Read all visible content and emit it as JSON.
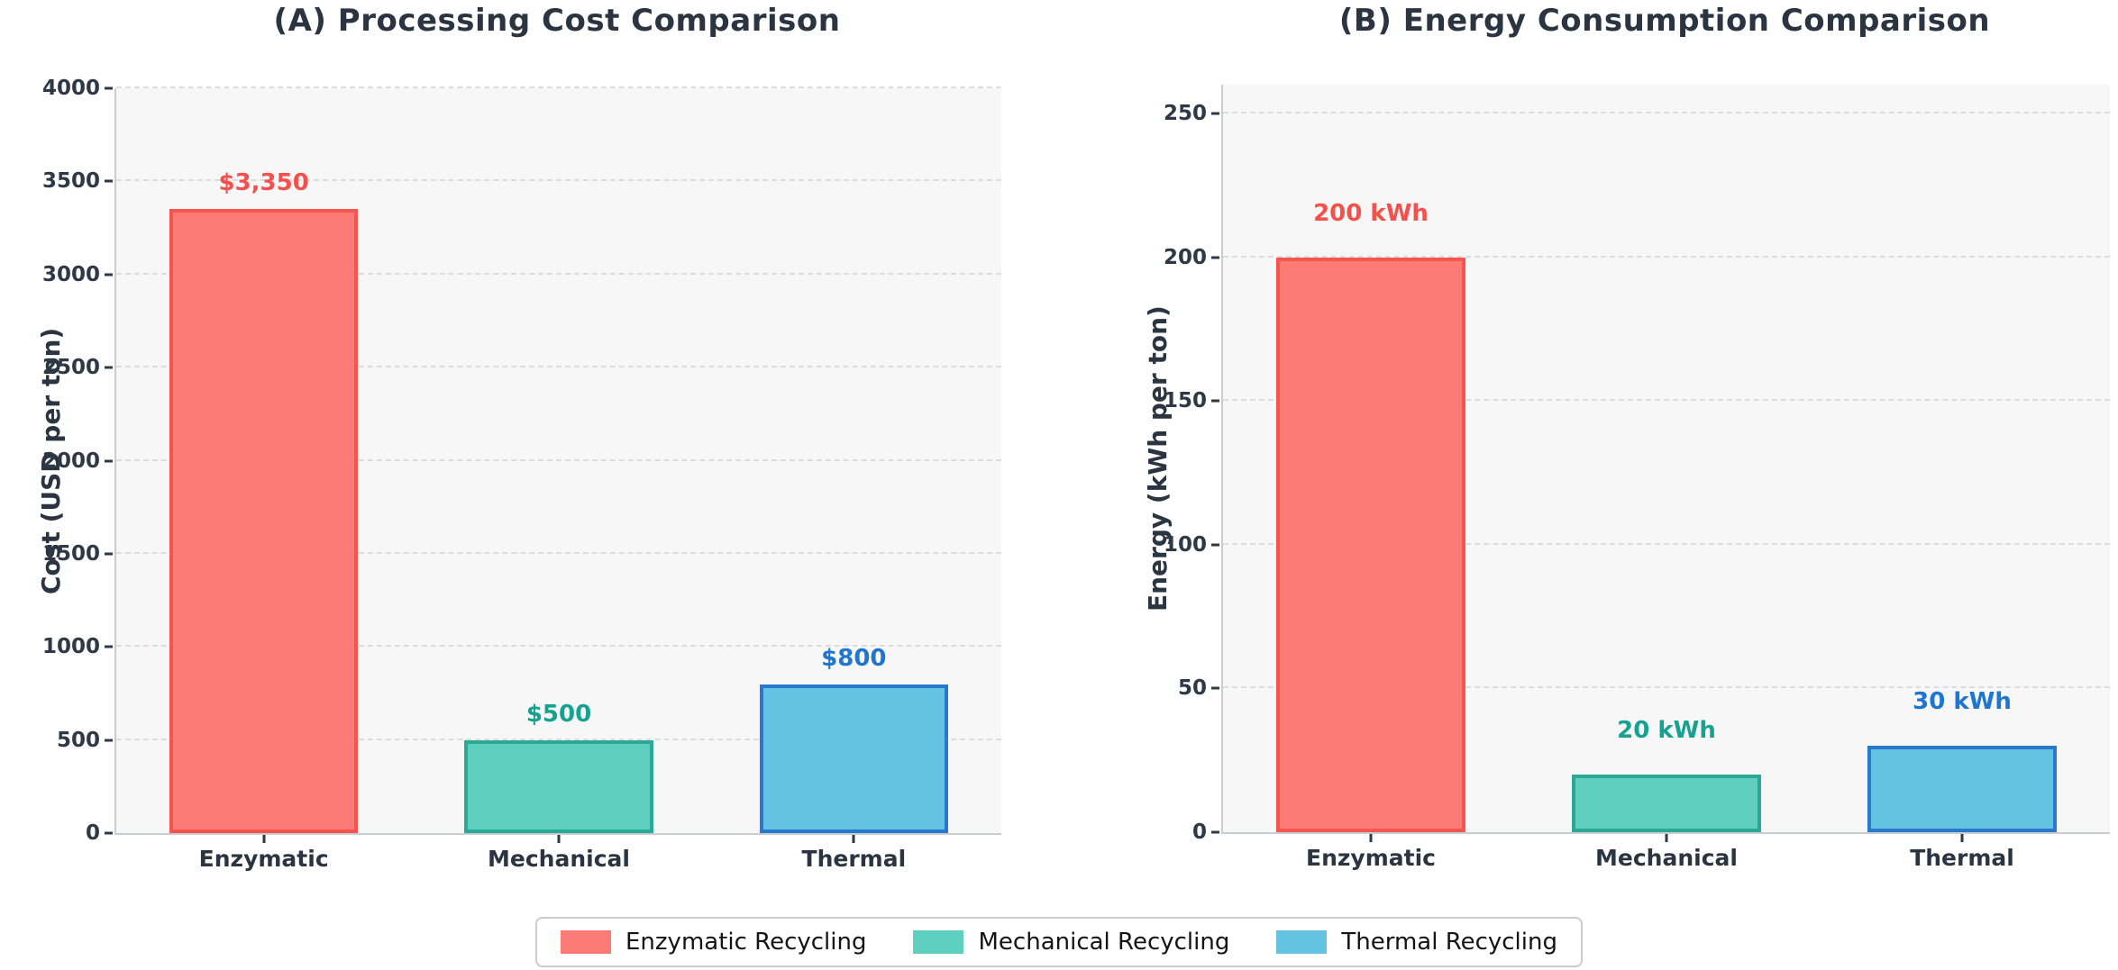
{
  "figure": {
    "background": "#FFFFFF",
    "plot_background": "#F7F7F8",
    "gridline_color": "#DCDCDE",
    "spine_color": "#C9CDD2",
    "text_color": "#2B3541"
  },
  "series": [
    {
      "name": "Enzymatic Recycling",
      "fill": "#FC7B76",
      "edge": "#F5544F",
      "label_color": "#F4504C"
    },
    {
      "name": "Mechanical Recycling",
      "fill": "#5FD0C0",
      "edge": "#2CA896",
      "label_color": "#16A190"
    },
    {
      "name": "Thermal Recycling",
      "fill": "#64C3E1",
      "edge": "#2878CE",
      "label_color": "#1E76CE"
    }
  ],
  "legend": {
    "items": [
      "Enzymatic Recycling",
      "Mechanical Recycling",
      "Thermal Recycling"
    ],
    "position": "figure-bottom-center"
  },
  "chart_data": [
    {
      "type": "bar",
      "title": "(A) Processing Cost Comparison",
      "ylabel": "Cost (USD per ton)",
      "xlabel": "",
      "categories": [
        "Enzymatic",
        "Mechanical",
        "Thermal"
      ],
      "values": [
        3350,
        500,
        800
      ],
      "value_labels": [
        "$3,350",
        "$500",
        "$800"
      ],
      "ylim": [
        0,
        4000
      ],
      "yticks": [
        0,
        500,
        1000,
        1500,
        2000,
        2500,
        3000,
        3500,
        4000
      ],
      "grid": "horizontal-dashed"
    },
    {
      "type": "bar",
      "title": "(B) Energy Consumption Comparison",
      "ylabel": "Energy (kWh per ton)",
      "xlabel": "",
      "categories": [
        "Enzymatic",
        "Mechanical",
        "Thermal"
      ],
      "values": [
        200,
        20,
        30
      ],
      "value_labels": [
        "200 kWh",
        "20 kWh",
        "30 kWh"
      ],
      "ylim": [
        0,
        260
      ],
      "yticks": [
        0,
        50,
        100,
        150,
        200,
        250
      ],
      "grid": "horizontal-dashed"
    }
  ]
}
